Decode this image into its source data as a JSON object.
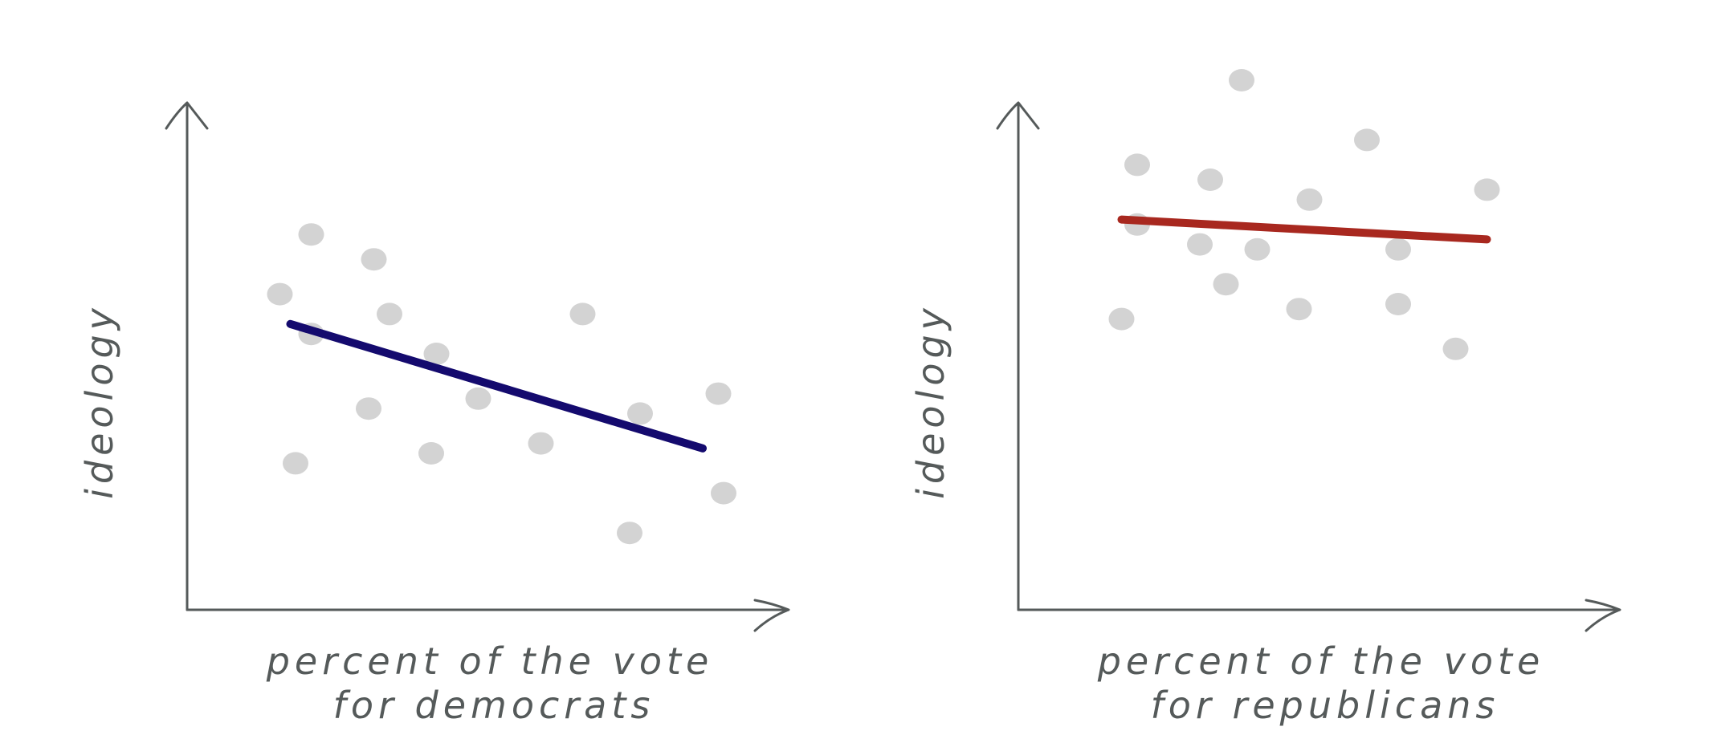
{
  "chart_data": [
    {
      "type": "scatter",
      "xlabel_lines": [
        "percent of the vote",
        "for democrats"
      ],
      "ylabel": "ideology",
      "xlim": [
        0,
        100
      ],
      "ylim": [
        0,
        100
      ],
      "point_color": "#d3d3d3",
      "trend_color": "#140a6e",
      "points": [
        {
          "x": 9,
          "y": 57
        },
        {
          "x": 15,
          "y": 69
        },
        {
          "x": 15,
          "y": 49
        },
        {
          "x": 12,
          "y": 23
        },
        {
          "x": 27,
          "y": 64
        },
        {
          "x": 30,
          "y": 53
        },
        {
          "x": 26,
          "y": 34
        },
        {
          "x": 39,
          "y": 45
        },
        {
          "x": 38,
          "y": 25
        },
        {
          "x": 47,
          "y": 36
        },
        {
          "x": 59,
          "y": 27
        },
        {
          "x": 67,
          "y": 53
        },
        {
          "x": 78,
          "y": 33
        },
        {
          "x": 76,
          "y": 9
        },
        {
          "x": 93,
          "y": 37
        },
        {
          "x": 94,
          "y": 17
        }
      ],
      "trend": [
        {
          "x": 11,
          "y": 51
        },
        {
          "x": 90,
          "y": 26
        }
      ]
    },
    {
      "type": "scatter",
      "xlabel_lines": [
        "percent of the vote",
        "for republicans"
      ],
      "ylabel": "ideology",
      "xlim": [
        0,
        100
      ],
      "ylim": [
        0,
        100
      ],
      "point_color": "#d3d3d3",
      "trend_color": "#a8281f",
      "points": [
        {
          "x": 14,
          "y": 83
        },
        {
          "x": 14,
          "y": 71
        },
        {
          "x": 11,
          "y": 52
        },
        {
          "x": 28,
          "y": 80
        },
        {
          "x": 26,
          "y": 67
        },
        {
          "x": 31,
          "y": 59
        },
        {
          "x": 34,
          "y": 100
        },
        {
          "x": 37,
          "y": 66
        },
        {
          "x": 47,
          "y": 76
        },
        {
          "x": 45,
          "y": 54
        },
        {
          "x": 58,
          "y": 88
        },
        {
          "x": 64,
          "y": 66
        },
        {
          "x": 64,
          "y": 55
        },
        {
          "x": 75,
          "y": 46
        },
        {
          "x": 81,
          "y": 78
        }
      ],
      "trend": [
        {
          "x": 11,
          "y": 72
        },
        {
          "x": 81,
          "y": 68
        }
      ]
    }
  ]
}
